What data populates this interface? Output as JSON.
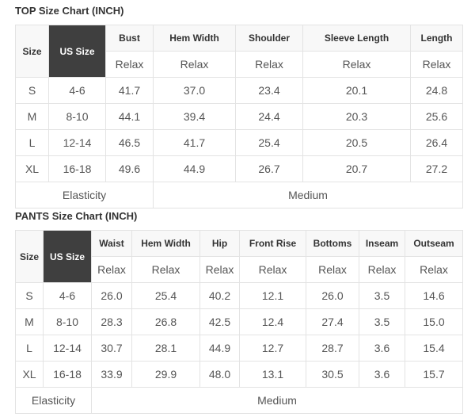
{
  "tables": [
    {
      "title": "TOP Size Chart (INCH)",
      "size_header": "Size",
      "us_header": "US Size",
      "columns": [
        "Bust",
        "Hem Width",
        "Shoulder",
        "Sleeve Length",
        "Length"
      ],
      "sub_label": "Relax",
      "rows": [
        {
          "size": "S",
          "us": "4-6",
          "values": [
            "41.7",
            "37.0",
            "23.4",
            "20.1",
            "24.8"
          ]
        },
        {
          "size": "M",
          "us": "8-10",
          "values": [
            "44.1",
            "39.4",
            "24.4",
            "20.3",
            "25.6"
          ]
        },
        {
          "size": "L",
          "us": "12-14",
          "values": [
            "46.5",
            "41.7",
            "25.4",
            "20.5",
            "26.4"
          ]
        },
        {
          "size": "XL",
          "us": "16-18",
          "values": [
            "49.6",
            "44.9",
            "26.7",
            "20.7",
            "27.2"
          ]
        }
      ],
      "elasticity_label": "Elasticity",
      "elasticity_value": "Medium"
    },
    {
      "title": "PANTS Size Chart (INCH)",
      "size_header": "Size",
      "us_header": "US Size",
      "columns": [
        "Waist",
        "Hem Width",
        "Hip",
        "Front Rise",
        "Bottoms",
        "Inseam",
        "Outseam"
      ],
      "sub_label": "Relax",
      "rows": [
        {
          "size": "S",
          "us": "4-6",
          "values": [
            "26.0",
            "25.4",
            "40.2",
            "12.1",
            "26.0",
            "3.5",
            "14.6"
          ]
        },
        {
          "size": "M",
          "us": "8-10",
          "values": [
            "28.3",
            "26.8",
            "42.5",
            "12.4",
            "27.4",
            "3.5",
            "15.0"
          ]
        },
        {
          "size": "L",
          "us": "12-14",
          "values": [
            "30.7",
            "28.1",
            "44.9",
            "12.7",
            "28.7",
            "3.6",
            "15.4"
          ]
        },
        {
          "size": "XL",
          "us": "16-18",
          "values": [
            "33.9",
            "29.9",
            "48.0",
            "13.1",
            "30.5",
            "3.6",
            "15.7"
          ]
        }
      ],
      "elasticity_label": "Elasticity",
      "elasticity_value": "Medium"
    }
  ]
}
